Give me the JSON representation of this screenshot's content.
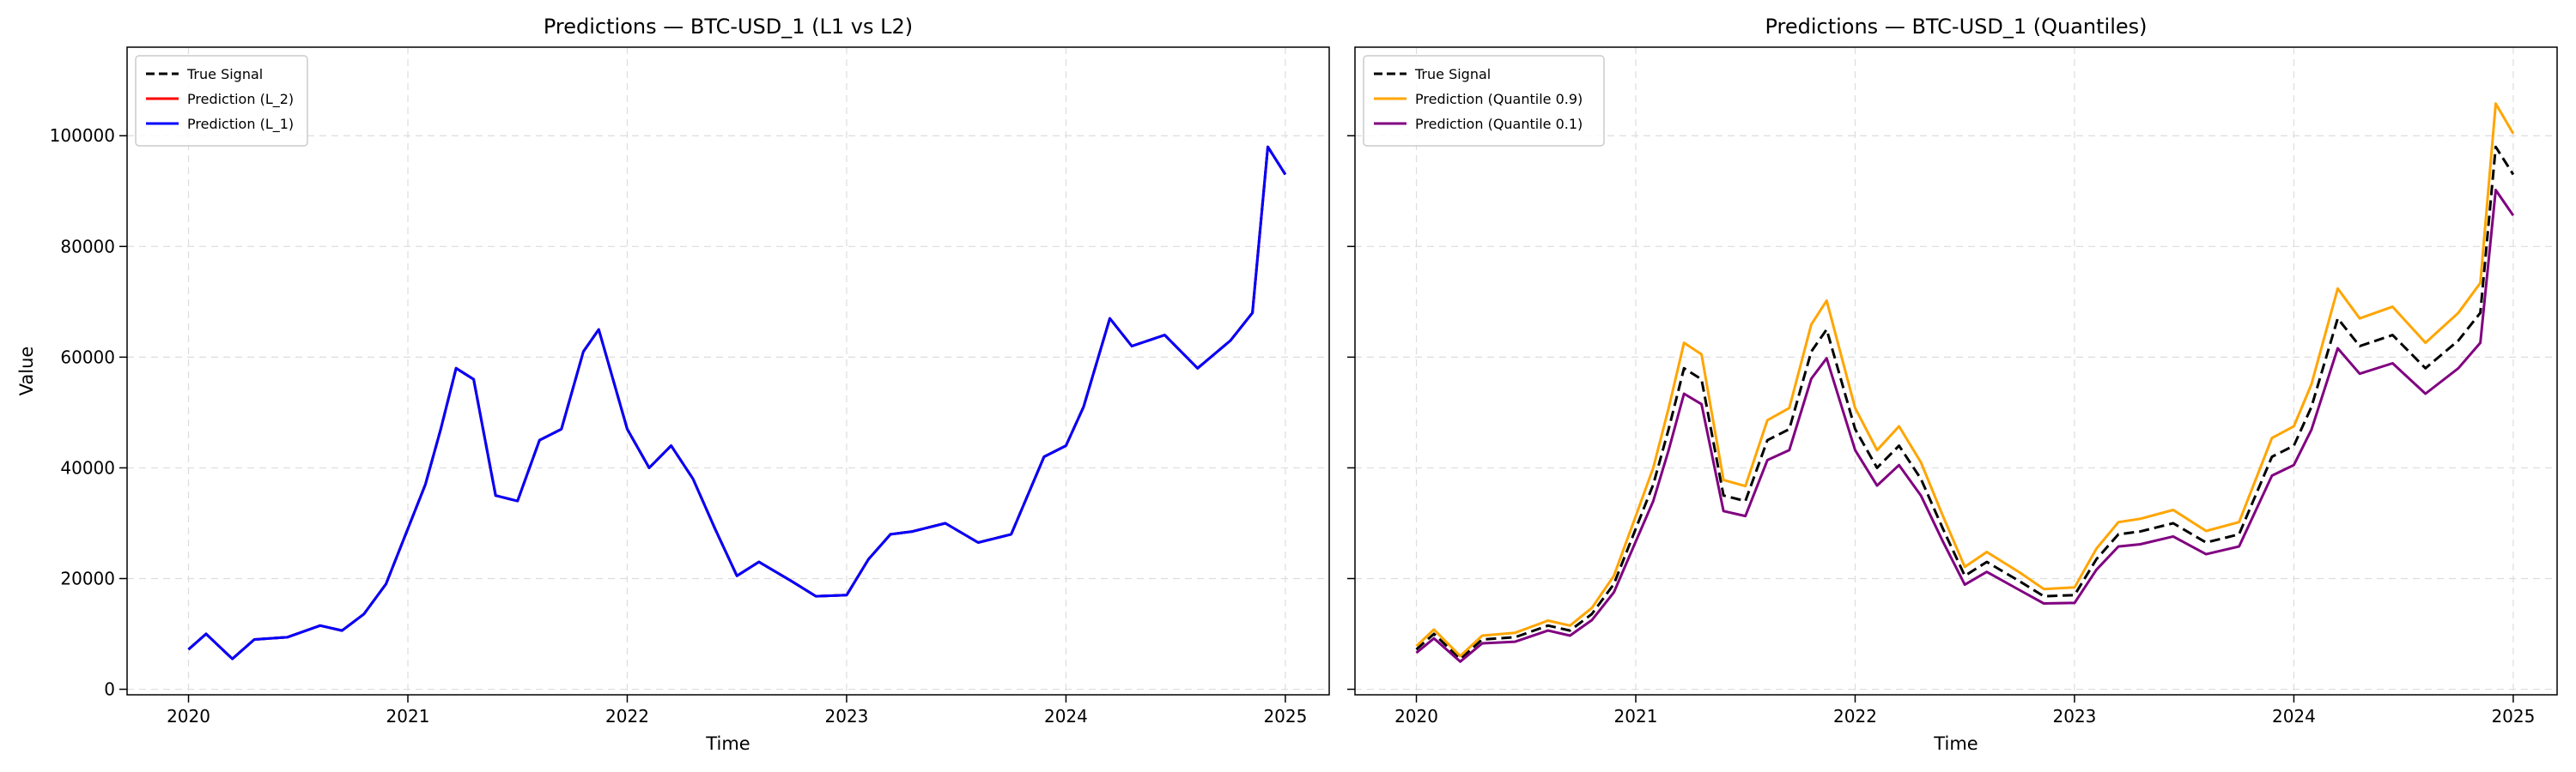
{
  "chart_data": [
    {
      "type": "line",
      "title": "Predictions — BTC-USD_1 (L1 vs L2)",
      "xlabel": "Time",
      "ylabel": "Value",
      "xlim": [
        2019.72,
        2025.2
      ],
      "ylim": [
        -1000,
        116000
      ],
      "x_ticks": [
        "2020",
        "2021",
        "2022",
        "2023",
        "2024",
        "2025"
      ],
      "y_ticks": [
        0,
        20000,
        40000,
        60000,
        80000,
        100000
      ],
      "grid": true,
      "legend_position": "top-left",
      "x": [
        2020.0,
        2020.08,
        2020.2,
        2020.3,
        2020.45,
        2020.6,
        2020.7,
        2020.8,
        2020.9,
        2021.0,
        2021.08,
        2021.15,
        2021.22,
        2021.3,
        2021.4,
        2021.5,
        2021.6,
        2021.7,
        2021.8,
        2021.87,
        2022.0,
        2022.1,
        2022.2,
        2022.3,
        2022.4,
        2022.5,
        2022.6,
        2022.75,
        2022.86,
        2023.0,
        2023.1,
        2023.2,
        2023.3,
        2023.45,
        2023.6,
        2023.75,
        2023.9,
        2024.0,
        2024.08,
        2024.2,
        2024.3,
        2024.45,
        2024.6,
        2024.75,
        2024.85,
        2024.92,
        2025.0
      ],
      "series": [
        {
          "name": "True Signal",
          "color": "#000000",
          "style": "dashed",
          "values": [
            7200,
            10000,
            5500,
            9000,
            9400,
            11500,
            10600,
            13600,
            19000,
            29000,
            37000,
            47000,
            58000,
            56000,
            35000,
            34000,
            45000,
            47000,
            61000,
            65000,
            47000,
            40000,
            44000,
            38000,
            29000,
            20500,
            23000,
            19500,
            16800,
            17000,
            23500,
            28000,
            28500,
            30000,
            26500,
            28000,
            42000,
            44000,
            51000,
            67000,
            62000,
            64000,
            58000,
            63000,
            68000,
            98000,
            93000
          ]
        },
        {
          "name": "Prediction (L_2)",
          "color": "#ff0000",
          "style": "solid",
          "values": [
            7200,
            10000,
            5500,
            9000,
            9400,
            11500,
            10600,
            13600,
            19000,
            29000,
            37000,
            47000,
            58000,
            56000,
            35000,
            34000,
            45000,
            47000,
            61000,
            65000,
            47000,
            40000,
            44000,
            38000,
            29000,
            20500,
            23000,
            19500,
            16800,
            17000,
            23500,
            28000,
            28500,
            30000,
            26500,
            28000,
            42000,
            44000,
            51000,
            67000,
            62000,
            64000,
            58000,
            63000,
            68000,
            98000,
            93000
          ]
        },
        {
          "name": "Prediction (L_1)",
          "color": "#0000ff",
          "style": "solid",
          "values": [
            7200,
            10000,
            5500,
            9000,
            9400,
            11500,
            10600,
            13600,
            19000,
            29000,
            37000,
            47000,
            58000,
            56000,
            35000,
            34000,
            45000,
            47000,
            61000,
            65000,
            47000,
            40000,
            44000,
            38000,
            29000,
            20500,
            23000,
            19500,
            16800,
            17000,
            23500,
            28000,
            28500,
            30000,
            26500,
            28000,
            42000,
            44000,
            51000,
            67000,
            62000,
            64000,
            58000,
            63000,
            68000,
            98000,
            93000
          ]
        }
      ]
    },
    {
      "type": "line",
      "title": "Predictions — BTC-USD_1 (Quantiles)",
      "xlabel": "Time",
      "ylabel": "",
      "xlim": [
        2019.72,
        2025.2
      ],
      "ylim": [
        -1000,
        116000
      ],
      "x_ticks": [
        "2020",
        "2021",
        "2022",
        "2023",
        "2024",
        "2025"
      ],
      "y_ticks": [
        0,
        20000,
        40000,
        60000,
        80000,
        100000
      ],
      "grid": true,
      "legend_position": "top-left",
      "x": [
        2020.0,
        2020.08,
        2020.2,
        2020.3,
        2020.45,
        2020.6,
        2020.7,
        2020.8,
        2020.9,
        2021.0,
        2021.08,
        2021.15,
        2021.22,
        2021.3,
        2021.4,
        2021.5,
        2021.6,
        2021.7,
        2021.8,
        2021.87,
        2022.0,
        2022.1,
        2022.2,
        2022.3,
        2022.4,
        2022.5,
        2022.6,
        2022.75,
        2022.86,
        2023.0,
        2023.1,
        2023.2,
        2023.3,
        2023.45,
        2023.6,
        2023.75,
        2023.9,
        2024.0,
        2024.08,
        2024.2,
        2024.3,
        2024.45,
        2024.6,
        2024.75,
        2024.85,
        2024.92,
        2025.0
      ],
      "series": [
        {
          "name": "True Signal",
          "color": "#000000",
          "style": "dashed",
          "values": [
            7200,
            10000,
            5500,
            9000,
            9400,
            11500,
            10600,
            13600,
            19000,
            29000,
            37000,
            47000,
            58000,
            56000,
            35000,
            34000,
            45000,
            47000,
            61000,
            65000,
            47000,
            40000,
            44000,
            38000,
            29000,
            20500,
            23000,
            19500,
            16800,
            17000,
            23500,
            28000,
            28500,
            30000,
            26500,
            28000,
            42000,
            44000,
            51000,
            67000,
            62000,
            64000,
            58000,
            63000,
            68000,
            98000,
            93000
          ]
        },
        {
          "name": "Prediction (Quantile 0.9)",
          "color": "#ffa500",
          "style": "solid",
          "values": [
            7800,
            10800,
            6000,
            9700,
            10200,
            12400,
            11500,
            14700,
            20500,
            31300,
            40000,
            50800,
            62600,
            60500,
            37800,
            36700,
            48600,
            50800,
            65900,
            70200,
            50800,
            43200,
            47500,
            41000,
            31300,
            22100,
            24800,
            21100,
            18100,
            18400,
            25400,
            30200,
            30800,
            32400,
            28600,
            30200,
            45400,
            47500,
            55100,
            72400,
            67000,
            69100,
            62600,
            68000,
            73400,
            105800,
            100400
          ]
        },
        {
          "name": "Prediction (Quantile 0.1)",
          "color": "#800080",
          "style": "solid",
          "values": [
            6600,
            9200,
            5000,
            8300,
            8600,
            10600,
            9700,
            12500,
            17500,
            26700,
            34000,
            43200,
            53400,
            51500,
            32200,
            31300,
            41400,
            43200,
            56100,
            59800,
            43200,
            36800,
            40500,
            35000,
            26700,
            18900,
            21200,
            17900,
            15500,
            15600,
            21600,
            25800,
            26200,
            27600,
            24400,
            25800,
            38600,
            40500,
            46900,
            61600,
            57000,
            58900,
            53400,
            58000,
            62600,
            90200,
            85600
          ]
        }
      ]
    }
  ]
}
